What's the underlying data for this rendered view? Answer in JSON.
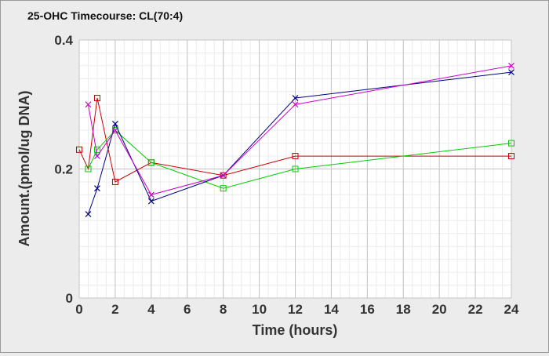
{
  "chart_data": {
    "type": "line",
    "title": "25-OHC Timecourse: CL(70:4)",
    "xlabel": "Time (hours)",
    "ylabel": "Amount.(pmol/ug DNA)",
    "xlim": [
      0,
      24
    ],
    "ylim": [
      0,
      0.4
    ],
    "x_ticks": [
      "0",
      "2",
      "4",
      "6",
      "8",
      "10",
      "12",
      "14",
      "16",
      "18",
      "20",
      "22",
      "24"
    ],
    "y_ticks": [
      "0",
      "0.2",
      "0.4"
    ],
    "grid": true,
    "legend": "none",
    "series": [
      {
        "color": "#cc0000",
        "marker": "square",
        "points": [
          [
            0,
            0.23
          ],
          [
            0.5,
            0.2
          ],
          [
            1,
            0.31
          ],
          [
            2,
            0.18
          ],
          [
            4,
            0.21
          ],
          [
            8,
            0.19
          ],
          [
            12,
            0.22
          ],
          [
            24,
            0.22
          ]
        ]
      },
      {
        "color": "#00cc00",
        "marker": "square",
        "points": [
          [
            0.5,
            0.2
          ],
          [
            1,
            0.23
          ],
          [
            2,
            0.26
          ],
          [
            4,
            0.21
          ],
          [
            8,
            0.17
          ],
          [
            12,
            0.2
          ],
          [
            24,
            0.24
          ]
        ]
      },
      {
        "color": "#000080",
        "marker": "x",
        "points": [
          [
            0.5,
            0.13
          ],
          [
            1,
            0.17
          ],
          [
            2,
            0.27
          ],
          [
            4,
            0.15
          ],
          [
            8,
            0.19
          ],
          [
            12,
            0.31
          ],
          [
            24,
            0.35
          ]
        ]
      },
      {
        "color": "#cc00cc",
        "marker": "x",
        "points": [
          [
            0.5,
            0.3
          ],
          [
            1,
            0.22
          ],
          [
            2,
            0.26
          ],
          [
            4,
            0.16
          ],
          [
            8,
            0.19
          ],
          [
            12,
            0.3
          ],
          [
            24,
            0.36
          ]
        ]
      }
    ]
  }
}
